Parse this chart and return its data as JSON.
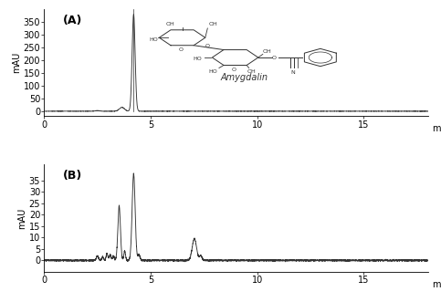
{
  "panel_A": {
    "label": "(A)",
    "ylabel": "mAU",
    "xlabel": "min",
    "xlim": [
      0,
      18
    ],
    "ylim": [
      -20,
      400
    ],
    "yticks": [
      0,
      50,
      100,
      150,
      200,
      250,
      300,
      350
    ],
    "xticks": [
      0,
      5,
      10,
      15
    ],
    "main_peak_rt": 4.2,
    "main_peak_height": 380,
    "pre_peak_rt": 3.6,
    "pre_peak_height": 18
  },
  "panel_B": {
    "label": "(B)",
    "ylabel": "mAU",
    "xlabel": "min",
    "xlim": [
      0,
      18
    ],
    "ylim": [
      -5,
      42
    ],
    "yticks": [
      0,
      5,
      10,
      15,
      20,
      25,
      30,
      35
    ],
    "xticks": [
      0,
      5,
      10,
      15
    ]
  },
  "line_color": "#333333",
  "bg_color": "#ffffff",
  "label_fontsize": 9,
  "tick_fontsize": 7,
  "axis_label_fontsize": 7,
  "amygdalin_text": "Amygdalin"
}
